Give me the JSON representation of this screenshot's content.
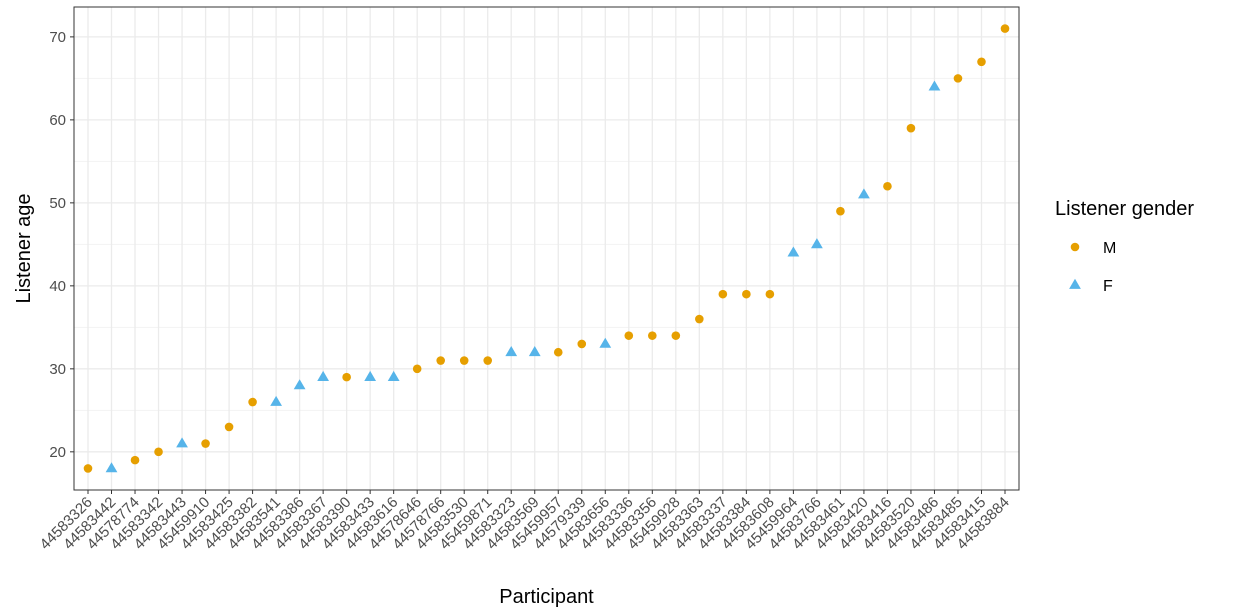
{
  "chart_data": {
    "type": "scatter",
    "title": "",
    "xlabel": "Participant",
    "ylabel": "Listener age",
    "ylim": [
      15.4,
      73.6
    ],
    "y_ticks": [
      20,
      30,
      40,
      50,
      60,
      70
    ],
    "grid": true,
    "legend_position": "right",
    "legend_title": "Listener gender",
    "categories": [
      "44583326",
      "44583442",
      "44578774",
      "44583342",
      "44583443",
      "45459910",
      "44583425",
      "44583382",
      "44583541",
      "44583386",
      "44583367",
      "44583390",
      "44583433",
      "44583616",
      "44578646",
      "44578766",
      "44583530",
      "45459871",
      "44583323",
      "44583569",
      "45459957",
      "44579339",
      "44583656",
      "44583336",
      "44583356",
      "45459928",
      "44583363",
      "44583337",
      "44583384",
      "44583608",
      "45459964",
      "44583766",
      "44583461",
      "44583420",
      "44583416",
      "44583520",
      "44583486",
      "44583485",
      "44583415",
      "44583884"
    ],
    "ages": [
      18,
      18,
      19,
      20,
      21,
      21,
      23,
      26,
      26,
      28,
      29,
      29,
      29,
      29,
      30,
      31,
      31,
      31,
      32,
      32,
      32,
      33,
      33,
      34,
      34,
      34,
      36,
      39,
      39,
      39,
      44,
      45,
      49,
      51,
      52,
      59,
      64,
      65,
      67,
      71
    ],
    "genders": [
      "M",
      "F",
      "M",
      "M",
      "F",
      "M",
      "M",
      "M",
      "F",
      "F",
      "F",
      "M",
      "F",
      "F",
      "M",
      "M",
      "M",
      "M",
      "F",
      "F",
      "M",
      "M",
      "F",
      "M",
      "M",
      "M",
      "M",
      "M",
      "M",
      "M",
      "F",
      "F",
      "M",
      "F",
      "M",
      "M",
      "F",
      "M",
      "M",
      "M"
    ],
    "series": [
      {
        "name": "M",
        "color": "#E69F00",
        "shape": "circle"
      },
      {
        "name": "F",
        "color": "#56B4E9",
        "shape": "triangle"
      }
    ]
  }
}
